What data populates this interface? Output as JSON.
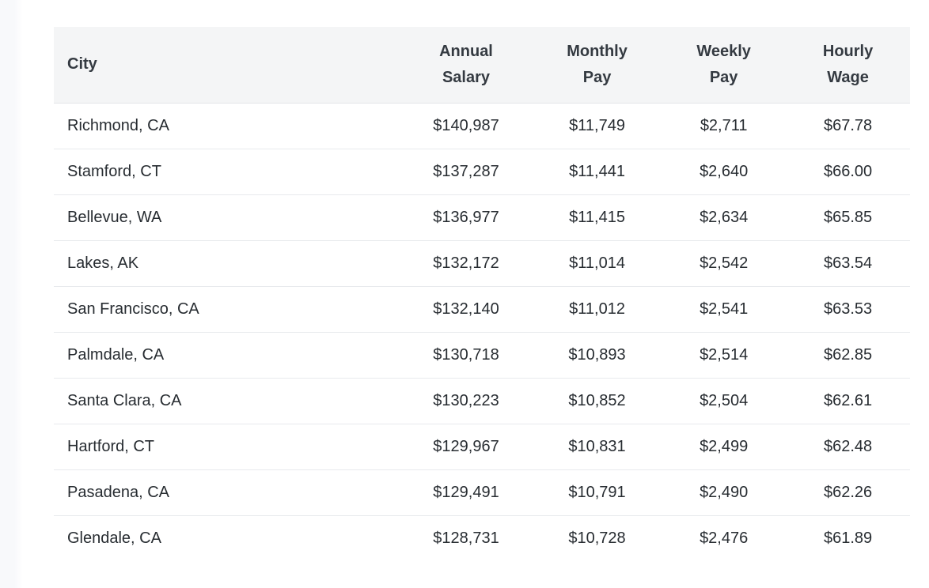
{
  "page": {
    "background_color": "#ffffff",
    "gutter_color": "#f8f9fb"
  },
  "salary_table": {
    "columns": [
      {
        "id": "city",
        "label": "City",
        "align": "left"
      },
      {
        "id": "annual",
        "label": "Annual Salary",
        "align": "center"
      },
      {
        "id": "monthly",
        "label": "Monthly Pay",
        "align": "center"
      },
      {
        "id": "weekly",
        "label": "Weekly Pay",
        "align": "center"
      },
      {
        "id": "hourly",
        "label": "Hourly Wage",
        "align": "center"
      }
    ],
    "rows": [
      {
        "city": "Richmond, CA",
        "annual": "$140,987",
        "monthly": "$11,749",
        "weekly": "$2,711",
        "hourly": "$67.78"
      },
      {
        "city": "Stamford, CT",
        "annual": "$137,287",
        "monthly": "$11,441",
        "weekly": "$2,640",
        "hourly": "$66.00"
      },
      {
        "city": "Bellevue, WA",
        "annual": "$136,977",
        "monthly": "$11,415",
        "weekly": "$2,634",
        "hourly": "$65.85"
      },
      {
        "city": "Lakes, AK",
        "annual": "$132,172",
        "monthly": "$11,014",
        "weekly": "$2,542",
        "hourly": "$63.54"
      },
      {
        "city": "San Francisco, CA",
        "annual": "$132,140",
        "monthly": "$11,012",
        "weekly": "$2,541",
        "hourly": "$63.53"
      },
      {
        "city": "Palmdale, CA",
        "annual": "$130,718",
        "monthly": "$10,893",
        "weekly": "$2,514",
        "hourly": "$62.85"
      },
      {
        "city": "Santa Clara, CA",
        "annual": "$130,223",
        "monthly": "$10,852",
        "weekly": "$2,504",
        "hourly": "$62.61"
      },
      {
        "city": "Hartford, CT",
        "annual": "$129,967",
        "monthly": "$10,831",
        "weekly": "$2,499",
        "hourly": "$62.48"
      },
      {
        "city": "Pasadena, CA",
        "annual": "$129,491",
        "monthly": "$10,791",
        "weekly": "$2,490",
        "hourly": "$62.26"
      },
      {
        "city": "Glendale, CA",
        "annual": "$128,731",
        "monthly": "$10,728",
        "weekly": "$2,476",
        "hourly": "$61.89"
      }
    ],
    "colors": {
      "header_background": "#f4f5f6",
      "header_text": "#343a41",
      "cell_text": "#272c31",
      "row_divider": "#e8eaed"
    }
  }
}
